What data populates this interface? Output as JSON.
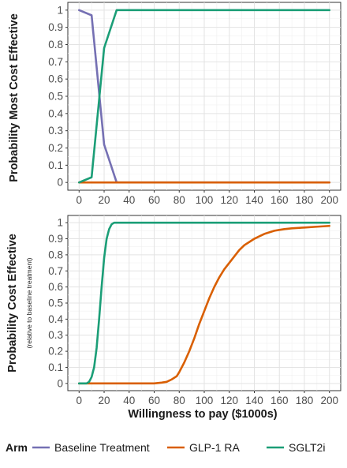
{
  "chart_data": [
    {
      "type": "line",
      "title": "",
      "xlabel": "",
      "ylabel": "Probability Most Cost Effective",
      "xlim": [
        0,
        200
      ],
      "ylim": [
        0,
        1
      ],
      "xticks": [
        0,
        20,
        40,
        60,
        80,
        100,
        120,
        140,
        160,
        180,
        200
      ],
      "xtick_labels": [
        "0",
        "20",
        "40",
        "60",
        "80",
        "100",
        "120",
        "140",
        "160",
        "180",
        "200"
      ],
      "yticks": [
        0,
        0.1,
        0.2,
        0.3,
        0.4,
        0.5,
        0.6,
        0.7,
        0.8,
        0.9,
        1
      ],
      "ytick_labels": [
        "0",
        "0.1",
        "0.2",
        "0.3",
        "0.4",
        "0.5",
        "0.6",
        "0.7",
        "0.8",
        "0.9",
        "1"
      ],
      "grid": true,
      "series": [
        {
          "name": "Baseline Treatment",
          "color": "#7570b3",
          "x": [
            0,
            10,
            20,
            30,
            40,
            200
          ],
          "y": [
            1.0,
            0.97,
            0.22,
            0.0,
            0.0,
            0.0
          ]
        },
        {
          "name": "GLP-1 RA",
          "color": "#d95f02",
          "x": [
            0,
            10,
            20,
            30,
            40,
            200
          ],
          "y": [
            0.0,
            0.0,
            0.0,
            0.0,
            0.0,
            0.0
          ]
        },
        {
          "name": "SGLT2i",
          "color": "#1b9e77",
          "x": [
            0,
            10,
            20,
            30,
            40,
            200
          ],
          "y": [
            0.0,
            0.03,
            0.78,
            1.0,
            1.0,
            1.0
          ]
        }
      ]
    },
    {
      "type": "line",
      "title": "",
      "xlabel": "Willingness to pay ($1000s)",
      "ylabel": "Probability Cost Effective",
      "ylabel_sub": "(relative to baseline treatment)",
      "xlim": [
        0,
        200
      ],
      "ylim": [
        0,
        1
      ],
      "xticks": [
        0,
        20,
        40,
        60,
        80,
        100,
        120,
        140,
        160,
        180,
        200
      ],
      "xtick_labels": [
        "0",
        "20",
        "40",
        "60",
        "80",
        "100",
        "120",
        "140",
        "160",
        "180",
        "200"
      ],
      "yticks": [
        0,
        0.1,
        0.2,
        0.3,
        0.4,
        0.5,
        0.6,
        0.7,
        0.8,
        0.9,
        1
      ],
      "ytick_labels": [
        "0",
        "0.1",
        "0.2",
        "0.3",
        "0.4",
        "0.5",
        "0.6",
        "0.7",
        "0.8",
        "0.9",
        "1"
      ],
      "grid": true,
      "series": [
        {
          "name": "GLP-1 RA",
          "color": "#d95f02",
          "x": [
            0,
            60,
            66,
            70,
            74,
            78,
            80,
            84,
            88,
            92,
            96,
            100,
            104,
            108,
            112,
            116,
            120,
            124,
            128,
            132,
            136,
            140,
            144,
            148,
            152,
            156,
            160,
            164,
            170,
            180,
            190,
            200
          ],
          "y": [
            0.0,
            0.0,
            0.005,
            0.01,
            0.025,
            0.045,
            0.07,
            0.13,
            0.2,
            0.28,
            0.37,
            0.45,
            0.53,
            0.6,
            0.66,
            0.71,
            0.75,
            0.79,
            0.83,
            0.86,
            0.88,
            0.9,
            0.915,
            0.93,
            0.94,
            0.95,
            0.955,
            0.96,
            0.965,
            0.97,
            0.975,
            0.98
          ]
        },
        {
          "name": "SGLT2i",
          "color": "#1b9e77",
          "x": [
            0,
            6,
            8,
            10,
            12,
            14,
            16,
            18,
            20,
            22,
            24,
            26,
            28,
            30,
            200
          ],
          "y": [
            0.0,
            0.0,
            0.01,
            0.04,
            0.1,
            0.22,
            0.4,
            0.6,
            0.78,
            0.9,
            0.96,
            0.99,
            1.0,
            1.0,
            1.0
          ]
        }
      ]
    }
  ],
  "legend": {
    "title": "Arm",
    "position": "bottom",
    "items": [
      {
        "label": "Baseline Treatment",
        "color": "#7570b3"
      },
      {
        "label": "GLP-1 RA",
        "color": "#d95f02"
      },
      {
        "label": "SGLT2i",
        "color": "#1b9e77"
      }
    ]
  }
}
